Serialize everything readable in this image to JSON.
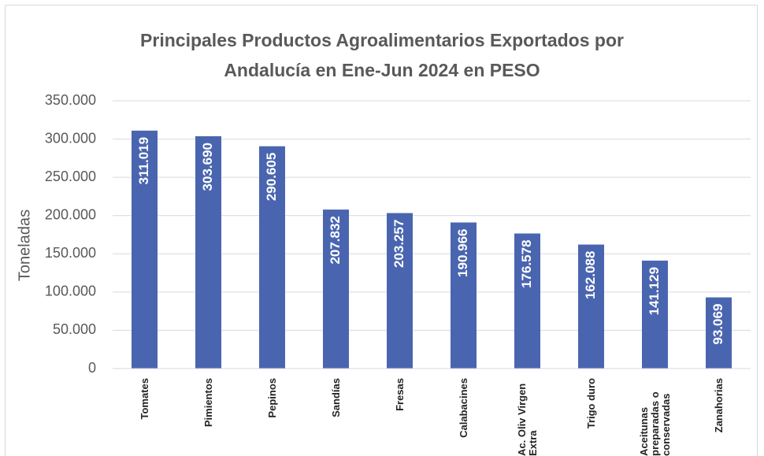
{
  "chart_data": {
    "type": "bar",
    "title": "Principales Productos Agroalimentarios Exportados por Andalucía en Ene-Jun 2024 en PESO",
    "y_label": "Toneladas",
    "categories": [
      "Tomates",
      "Pimientos",
      "Pepinos",
      "Sandías",
      "Fresas",
      "Calabacines",
      "Ac. Oliv Virgen Extra",
      "Trigo duro",
      "Aceitunas preparadas o conservadas",
      "Zanahorias"
    ],
    "values": [
      311019,
      303690,
      290605,
      207832,
      203257,
      190966,
      176578,
      162088,
      141129,
      93069
    ],
    "value_labels": [
      "311.019",
      "303.690",
      "290.605",
      "207.832",
      "203.257",
      "190.966",
      "176.578",
      "162.088",
      "141.129",
      "93.069"
    ],
    "color": "#4a65b0",
    "ylim": [
      0,
      350000
    ],
    "yticks": [
      0,
      {
        "value": 50000,
        "label": "50.000"
      },
      {
        "value": 100000,
        "label": "100.000"
      },
      {
        "value": 150000,
        "label": "150.000"
      },
      {
        "value": 200000,
        "label": "200.000"
      },
      {
        "value": 250000,
        "label": "250.000"
      },
      {
        "value": 300000,
        "label": "300.000"
      },
      {
        "value": 350000,
        "label": "350.000"
      }
    ],
    "grid": true
  }
}
